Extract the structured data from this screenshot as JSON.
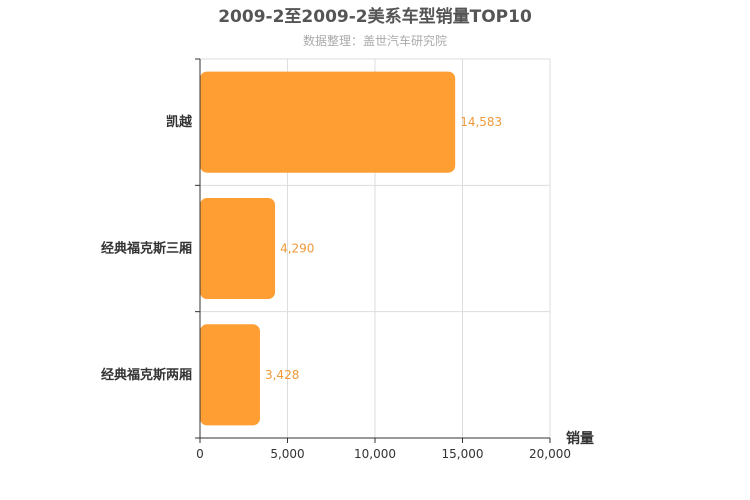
{
  "chart_data": {
    "type": "bar",
    "orientation": "horizontal",
    "title": "2009-2至2009-2美系车型销量TOP10",
    "subtitle": "数据整理：盖世汽车研究院",
    "categories": [
      "凯越",
      "经典福克斯三厢",
      "经典福克斯两厢"
    ],
    "values": [
      14583,
      4290,
      3428
    ],
    "value_labels": [
      "14,583",
      "4,290",
      "3,428"
    ],
    "xlabel": "销量",
    "ylabel": "",
    "xlim": [
      0,
      20000
    ],
    "ticks": [
      0,
      5000,
      10000,
      15000,
      20000
    ],
    "tick_labels": [
      "0",
      "5,000",
      "10,000",
      "15,000",
      "20,000"
    ],
    "grid": true,
    "bar_color": "#ff9e33",
    "value_label_color": "#ee9a3a"
  }
}
